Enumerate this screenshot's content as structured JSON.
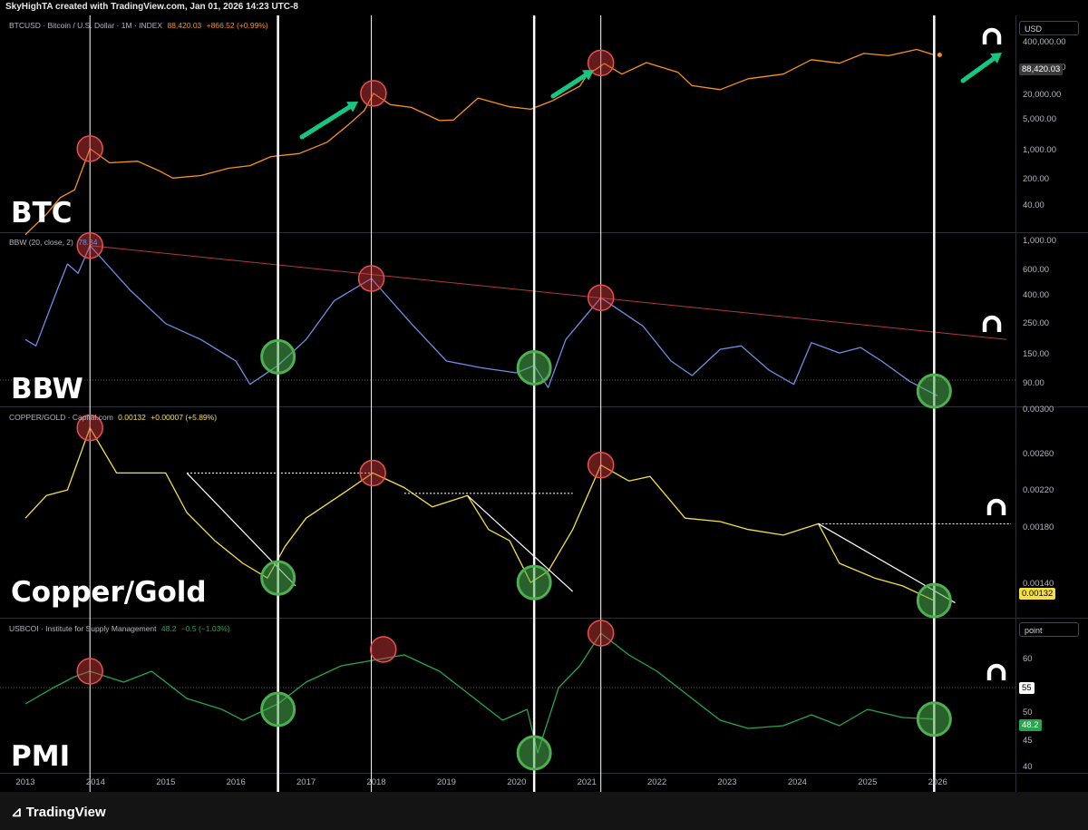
{
  "header": {
    "text": "SkyHighTA created with TradingView.com, Jan 01, 2026 14:23 UTC-8"
  },
  "colors": {
    "btc": "#f7931a",
    "bbw": "#6e8ee6",
    "copper": "#f5e042",
    "pmi": "#26a64a",
    "trendline_red": "#b23a3a",
    "marker_red": "#e85050",
    "marker_green": "#4caf50",
    "arrow_green": "#16c784",
    "vertical_line": "#ffffff"
  },
  "panes": {
    "btc": {
      "title": "BTCUSD · Bitcoin / U.S. Dollar · 1M · INDEX",
      "value": "88,420.03",
      "change": "+866.52 (+0.99%)",
      "label": "BTC",
      "unit": "USD",
      "price_tag": "88,420.03",
      "axis": [
        "400,000.00",
        "100,000.00",
        "20,000.00",
        "5,000.00",
        "1,000.00",
        "200.00",
        "40.00"
      ]
    },
    "bbw": {
      "title": "BBW (20, close, 2)",
      "value": "78.34",
      "label": "BBW",
      "axis": [
        "1,000.00",
        "600.00",
        "400.00",
        "250.00",
        "150.00",
        "90.00"
      ]
    },
    "copper": {
      "title": "COPPER/GOLD · Capital.com",
      "value": "0.00132",
      "change": "+0.00007 (+5.89%)",
      "label": "Copper/Gold",
      "price_tag": "0.00132",
      "axis": [
        "0.00300",
        "0.00260",
        "0.00220",
        "0.00180",
        "0.00140"
      ]
    },
    "pmi": {
      "title": "USBCOI · Institute for Supply Management",
      "value": "48.2",
      "change": "−0.5 (−1.03%)",
      "label": "PMI",
      "unit": "point",
      "price_tag": "48.2",
      "level_tag": "55",
      "axis": [
        "60",
        "50",
        "45",
        "40"
      ]
    }
  },
  "x_axis": {
    "years": [
      "2013",
      "2014",
      "2015",
      "2016",
      "2017",
      "2018",
      "2019",
      "2020",
      "2021",
      "2022",
      "2023",
      "2024",
      "2025",
      "2026"
    ]
  },
  "footer": {
    "brand": "TradingView"
  },
  "chart_data": [
    {
      "type": "line",
      "title": "BTCUSD · Bitcoin / U.S. Dollar · 1M · INDEX",
      "scale": "log",
      "ylim": [
        20,
        500000
      ],
      "series": [
        {
          "name": "BTCUSD",
          "points": [
            [
              2013.0,
              15
            ],
            [
              2013.3,
              40
            ],
            [
              2013.5,
              90
            ],
            [
              2013.7,
              130
            ],
            [
              2013.92,
              950
            ],
            [
              2014.2,
              480
            ],
            [
              2014.6,
              520
            ],
            [
              2014.9,
              330
            ],
            [
              2015.1,
              230
            ],
            [
              2015.5,
              260
            ],
            [
              2015.9,
              370
            ],
            [
              2016.2,
              420
            ],
            [
              2016.5,
              650
            ],
            [
              2016.9,
              750
            ],
            [
              2017.3,
              1300
            ],
            [
              2017.6,
              3000
            ],
            [
              2017.83,
              6000
            ],
            [
              2017.96,
              13800
            ],
            [
              2018.2,
              8000
            ],
            [
              2018.5,
              7000
            ],
            [
              2018.9,
              3700
            ],
            [
              2019.1,
              3800
            ],
            [
              2019.45,
              11000
            ],
            [
              2019.9,
              7200
            ],
            [
              2020.2,
              6400
            ],
            [
              2020.5,
              9500
            ],
            [
              2020.9,
              19500
            ],
            [
              2021.0,
              33000
            ],
            [
              2021.25,
              58000
            ],
            [
              2021.5,
              35000
            ],
            [
              2021.85,
              61000
            ],
            [
              2022.3,
              38000
            ],
            [
              2022.5,
              20000
            ],
            [
              2022.9,
              16500
            ],
            [
              2023.3,
              28000
            ],
            [
              2023.8,
              35000
            ],
            [
              2024.2,
              70000
            ],
            [
              2024.6,
              59000
            ],
            [
              2024.95,
              95000
            ],
            [
              2025.3,
              85000
            ],
            [
              2025.7,
              115000
            ],
            [
              2025.95,
              88420
            ]
          ]
        }
      ]
    },
    {
      "type": "line",
      "title": "BBW (20, close, 2)",
      "scale": "log",
      "ylim": [
        70,
        1100
      ],
      "series": [
        {
          "name": "BBW",
          "points": [
            [
              2013.0,
              200
            ],
            [
              2013.15,
              180
            ],
            [
              2013.45,
              450
            ],
            [
              2013.6,
              700
            ],
            [
              2013.75,
              600
            ],
            [
              2013.92,
              950
            ],
            [
              2014.5,
              450
            ],
            [
              2015.0,
              260
            ],
            [
              2015.5,
              200
            ],
            [
              2016.0,
              140
            ],
            [
              2016.2,
              95
            ],
            [
              2016.6,
              130
            ],
            [
              2017.0,
              200
            ],
            [
              2017.4,
              380
            ],
            [
              2017.93,
              550
            ],
            [
              2018.5,
              260
            ],
            [
              2019.0,
              140
            ],
            [
              2019.5,
              125
            ],
            [
              2020.0,
              115
            ],
            [
              2020.25,
              130
            ],
            [
              2020.45,
              90
            ],
            [
              2020.7,
              200
            ],
            [
              2021.2,
              400
            ],
            [
              2021.8,
              250
            ],
            [
              2022.2,
              140
            ],
            [
              2022.5,
              110
            ],
            [
              2022.9,
              170
            ],
            [
              2023.2,
              180
            ],
            [
              2023.6,
              120
            ],
            [
              2023.95,
              95
            ],
            [
              2024.2,
              190
            ],
            [
              2024.6,
              160
            ],
            [
              2024.9,
              175
            ],
            [
              2025.2,
              140
            ],
            [
              2025.6,
              100
            ],
            [
              2026.0,
              78.34
            ]
          ]
        }
      ]
    },
    {
      "type": "line",
      "title": "COPPER/GOLD · Capital.com",
      "ylim": [
        0.0012,
        0.003
      ],
      "series": [
        {
          "name": "COPPER/GOLD",
          "points": [
            [
              2013.0,
              0.00205
            ],
            [
              2013.3,
              0.00225
            ],
            [
              2013.6,
              0.0023
            ],
            [
              2013.92,
              0.00285
            ],
            [
              2014.3,
              0.00245
            ],
            [
              2014.7,
              0.00245
            ],
            [
              2015.0,
              0.00245
            ],
            [
              2015.3,
              0.0021
            ],
            [
              2015.7,
              0.00185
            ],
            [
              2016.1,
              0.00165
            ],
            [
              2016.45,
              0.00152
            ],
            [
              2016.7,
              0.0018
            ],
            [
              2017.0,
              0.00205
            ],
            [
              2017.6,
              0.0023
            ],
            [
              2017.95,
              0.00245
            ],
            [
              2018.4,
              0.00232
            ],
            [
              2018.8,
              0.00215
            ],
            [
              2019.3,
              0.00225
            ],
            [
              2019.6,
              0.00195
            ],
            [
              2019.9,
              0.00185
            ],
            [
              2020.2,
              0.00148
            ],
            [
              2020.45,
              0.00158
            ],
            [
              2020.8,
              0.00195
            ],
            [
              2021.2,
              0.00252
            ],
            [
              2021.6,
              0.00238
            ],
            [
              2021.9,
              0.00242
            ],
            [
              2022.4,
              0.00205
            ],
            [
              2022.9,
              0.00202
            ],
            [
              2023.3,
              0.00195
            ],
            [
              2023.8,
              0.0019
            ],
            [
              2024.3,
              0.002
            ],
            [
              2024.6,
              0.00165
            ],
            [
              2025.1,
              0.00152
            ],
            [
              2025.5,
              0.00145
            ],
            [
              2025.95,
              0.00132
            ]
          ]
        }
      ]
    },
    {
      "type": "line",
      "title": "USBCOI · Institute for Supply Management",
      "ylim": [
        39,
        66
      ],
      "series": [
        {
          "name": "USBCOI",
          "points": [
            [
              2013.0,
              51
            ],
            [
              2013.4,
              54
            ],
            [
              2013.7,
              56
            ],
            [
              2013.92,
              57
            ],
            [
              2014.4,
              55
            ],
            [
              2014.8,
              57
            ],
            [
              2015.3,
              52
            ],
            [
              2015.8,
              50
            ],
            [
              2016.1,
              48
            ],
            [
              2016.6,
              51
            ],
            [
              2017.0,
              55
            ],
            [
              2017.5,
              58
            ],
            [
              2017.95,
              59
            ],
            [
              2018.4,
              60
            ],
            [
              2018.9,
              57
            ],
            [
              2019.4,
              52
            ],
            [
              2019.8,
              48
            ],
            [
              2020.15,
              50
            ],
            [
              2020.3,
              42
            ],
            [
              2020.6,
              54
            ],
            [
              2020.9,
              58
            ],
            [
              2021.2,
              64
            ],
            [
              2021.6,
              60
            ],
            [
              2022.0,
              57
            ],
            [
              2022.5,
              52
            ],
            [
              2022.9,
              48
            ],
            [
              2023.3,
              46.5
            ],
            [
              2023.8,
              47
            ],
            [
              2024.2,
              49
            ],
            [
              2024.6,
              47
            ],
            [
              2025.0,
              50
            ],
            [
              2025.5,
              48.5
            ],
            [
              2025.95,
              48.2
            ]
          ]
        }
      ]
    }
  ]
}
